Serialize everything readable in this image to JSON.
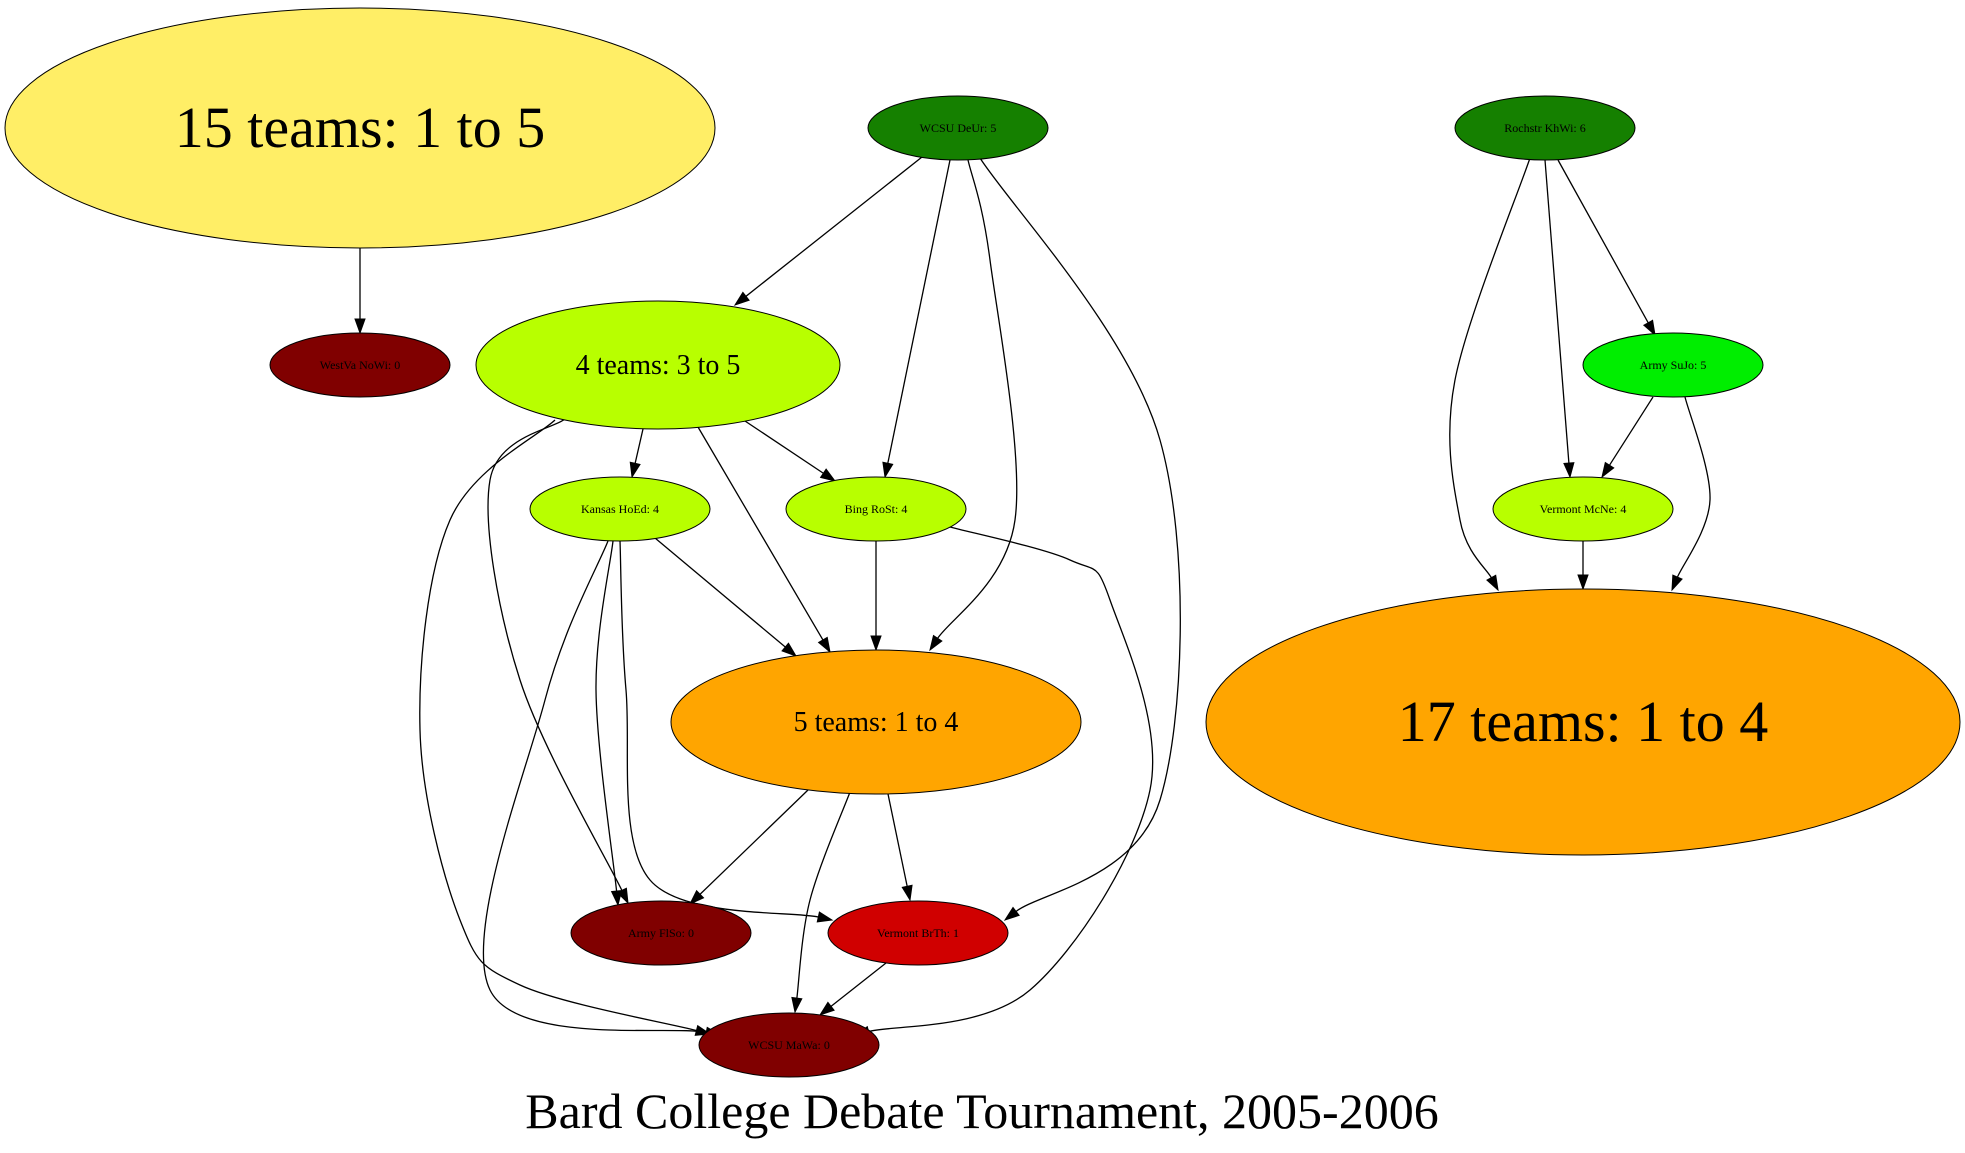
{
  "title": "Bard College Debate Tournament, 2005-2006",
  "nodes": [
    {
      "id": "g15",
      "label": "15 teams: 1 to 5",
      "fill": "#ffee66",
      "size": "xl"
    },
    {
      "id": "wcsu_deur",
      "label": "WCSU DeUr: 5",
      "fill": "#158000",
      "size": "s"
    },
    {
      "id": "rochstr_khwi",
      "label": "Rochstr KhWi: 6",
      "fill": "#158000",
      "size": "s"
    },
    {
      "id": "westva_nowi",
      "label": "WestVa NoWi: 0",
      "fill": "#800000",
      "size": "s"
    },
    {
      "id": "g4",
      "label": "4 teams: 3 to 5",
      "fill": "#b8ff00",
      "size": "m"
    },
    {
      "id": "army_sujo",
      "label": "Army SuJo: 5",
      "fill": "#00ee00",
      "size": "s"
    },
    {
      "id": "kansas_hoed",
      "label": "Kansas HoEd: 4",
      "fill": "#b8ff00",
      "size": "s"
    },
    {
      "id": "bing_rost",
      "label": "Bing RoSt: 4",
      "fill": "#b8ff00",
      "size": "s"
    },
    {
      "id": "vermont_mcne",
      "label": "Vermont McNe: 4",
      "fill": "#b8ff00",
      "size": "s"
    },
    {
      "id": "g5",
      "label": "5 teams: 1 to 4",
      "fill": "#ffa500",
      "size": "m"
    },
    {
      "id": "g17",
      "label": "17 teams: 1 to 4",
      "fill": "#ffa500",
      "size": "xl"
    },
    {
      "id": "army_flso",
      "label": "Army FlSo: 0",
      "fill": "#800000",
      "size": "s"
    },
    {
      "id": "vermont_brth",
      "label": "Vermont BrTh: 1",
      "fill": "#d00000",
      "size": "s"
    },
    {
      "id": "wcsu_mawa",
      "label": "WCSU MaWa: 0",
      "fill": "#800000",
      "size": "s"
    }
  ],
  "edges": [
    {
      "from": "g15",
      "to": "westva_nowi"
    },
    {
      "from": "wcsu_deur",
      "to": "g4"
    },
    {
      "from": "wcsu_deur",
      "to": "bing_rost"
    },
    {
      "from": "wcsu_deur",
      "to": "g5"
    },
    {
      "from": "wcsu_deur",
      "to": "vermont_brth"
    },
    {
      "from": "g4",
      "to": "kansas_hoed"
    },
    {
      "from": "g4",
      "to": "bing_rost"
    },
    {
      "from": "g4",
      "to": "g5"
    },
    {
      "from": "g4",
      "to": "army_flso"
    },
    {
      "from": "g4",
      "to": "wcsu_mawa"
    },
    {
      "from": "kansas_hoed",
      "to": "g5"
    },
    {
      "from": "kansas_hoed",
      "to": "army_flso"
    },
    {
      "from": "kansas_hoed",
      "to": "vermont_brth"
    },
    {
      "from": "kansas_hoed",
      "to": "wcsu_mawa"
    },
    {
      "from": "bing_rost",
      "to": "g5"
    },
    {
      "from": "bing_rost",
      "to": "wcsu_mawa"
    },
    {
      "from": "g5",
      "to": "army_flso"
    },
    {
      "from": "g5",
      "to": "vermont_brth"
    },
    {
      "from": "g5",
      "to": "wcsu_mawa"
    },
    {
      "from": "vermont_brth",
      "to": "wcsu_mawa"
    },
    {
      "from": "rochstr_khwi",
      "to": "army_sujo"
    },
    {
      "from": "rochstr_khwi",
      "to": "vermont_mcne"
    },
    {
      "from": "rochstr_khwi",
      "to": "g17"
    },
    {
      "from": "army_sujo",
      "to": "vermont_mcne"
    },
    {
      "from": "army_sujo",
      "to": "g17"
    },
    {
      "from": "vermont_mcne",
      "to": "g17"
    }
  ]
}
